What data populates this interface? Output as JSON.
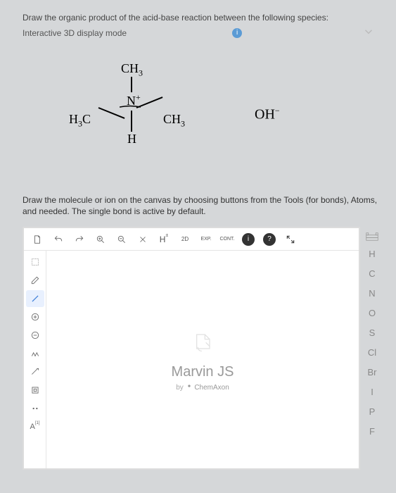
{
  "question": {
    "prompt": "Draw the organic product of the acid-base reaction between the following species:",
    "mode": "Interactive 3D display mode"
  },
  "reactants": {
    "amine": {
      "ch3_top": "CH",
      "sub3": "3",
      "n_plus": "N",
      "plus": "+",
      "ch3_right": "CH",
      "h3c_left": "H",
      "c_left": "C",
      "sub3b": "3",
      "h_bottom": "H"
    },
    "hydroxide": {
      "oh": "OH",
      "neg": "−"
    }
  },
  "instruction": "Draw the molecule or ion on the canvas by choosing buttons from the Tools (for bonds), Atoms, and needed. The single bond is active by default.",
  "toolbar": {
    "top": {
      "new": "",
      "undo": "",
      "redo": "",
      "zoomin": "",
      "zoomout": "",
      "delete": "",
      "h_toggle": "H",
      "h_pm": "±",
      "charge": "2D",
      "exp": "EXP.",
      "cont": "CONT.",
      "info": "i",
      "help": "?"
    },
    "left": {
      "a_label": "A",
      "a_sup": "[1]"
    },
    "elements": [
      "H",
      "C",
      "N",
      "O",
      "S",
      "Cl",
      "Br",
      "I",
      "P",
      "F"
    ]
  },
  "brand": {
    "name": "Marvin JS",
    "by": "by",
    "company": "ChemAxon"
  }
}
